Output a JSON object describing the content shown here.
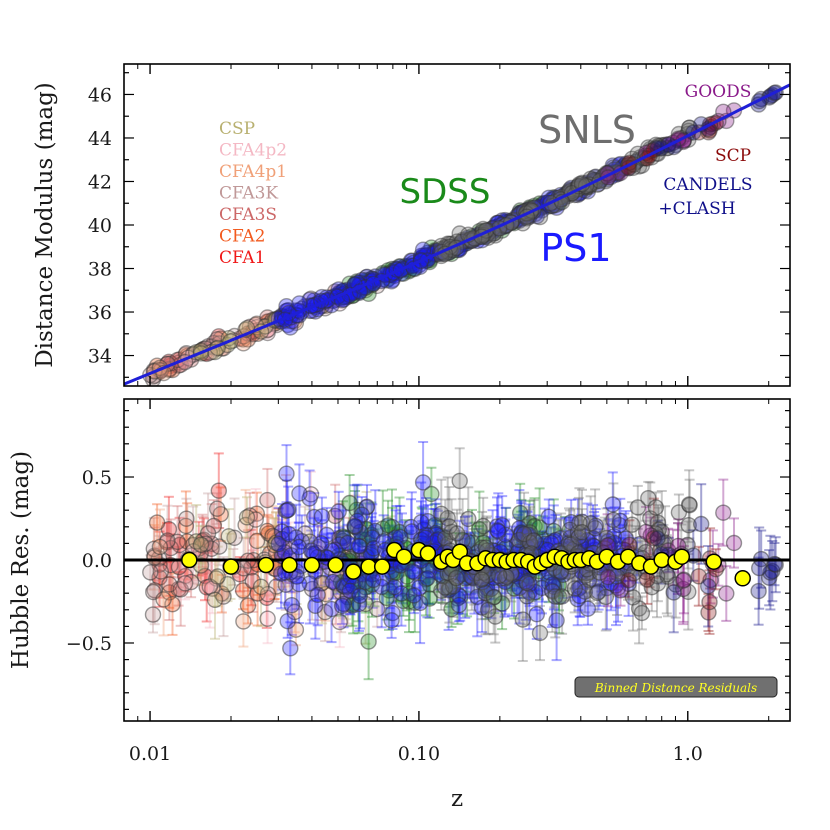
{
  "chart_data": [
    {
      "type": "scatter",
      "panel": "top",
      "ylabel": "Distance Modulus (mag)",
      "xscale": "log",
      "xlim": [
        0.008,
        2.4
      ],
      "ylim": [
        32.6,
        47.4
      ],
      "yticks": [
        34,
        36,
        38,
        40,
        42,
        44,
        46
      ],
      "model_line": {
        "color": "#1f1fd6",
        "H0_kms_mpc": 70,
        "Om": 0.3
      },
      "survey_labels_left": [
        {
          "text": "CSP",
          "color": "#b8b070"
        },
        {
          "text": "CFA4p2",
          "color": "#f4b8c4"
        },
        {
          "text": "CFA4p1",
          "color": "#f0a078"
        },
        {
          "text": "CFA3K",
          "color": "#c09898"
        },
        {
          "text": "CFA3S",
          "color": "#cc6868"
        },
        {
          "text": "CFA2",
          "color": "#f25a1e"
        },
        {
          "text": "CFA1",
          "color": "#f01818"
        }
      ],
      "survey_labels_right": [
        {
          "text": "SDSS",
          "color": "#1a8a1a"
        },
        {
          "text": "SNLS",
          "color": "#6e6e6e"
        },
        {
          "text": "PS1",
          "color": "#1a1aff"
        },
        {
          "text": "GOODS",
          "color": "#8a1a8a"
        },
        {
          "text": "SCP",
          "color": "#8b0a0a"
        },
        {
          "text": "CANDELS",
          "color": "#10108a"
        },
        {
          "text": "+CLASH",
          "color": "#10108a"
        }
      ],
      "series": [
        {
          "name": "CFA1",
          "color": "#f01818",
          "z_range": [
            0.01,
            0.03
          ],
          "count": 15
        },
        {
          "name": "CFA2",
          "color": "#f25a1e",
          "z_range": [
            0.01,
            0.04
          ],
          "count": 18
        },
        {
          "name": "CFA3S",
          "color": "#cc6868",
          "z_range": [
            0.01,
            0.07
          ],
          "count": 30
        },
        {
          "name": "CFA3K",
          "color": "#c09898",
          "z_range": [
            0.01,
            0.07
          ],
          "count": 35
        },
        {
          "name": "CFA4p1",
          "color": "#f0a078",
          "z_range": [
            0.01,
            0.06
          ],
          "count": 20
        },
        {
          "name": "CFA4p2",
          "color": "#f4b8c4",
          "z_range": [
            0.01,
            0.06
          ],
          "count": 14
        },
        {
          "name": "CSP",
          "color": "#b8b070",
          "z_range": [
            0.01,
            0.08
          ],
          "count": 22
        },
        {
          "name": "SDSS",
          "color": "#1a8a1a",
          "z_range": [
            0.05,
            0.35
          ],
          "count": 110
        },
        {
          "name": "PS1",
          "color": "#1a1aff",
          "z_range": [
            0.03,
            0.65
          ],
          "count": 280
        },
        {
          "name": "SNLS",
          "color": "#6e6e6e",
          "z_range": [
            0.12,
            1.05
          ],
          "count": 150
        },
        {
          "name": "GOODS",
          "color": "#8a1a8a",
          "z_range": [
            0.5,
            1.5
          ],
          "count": 18
        },
        {
          "name": "SCP",
          "color": "#8b0a0a",
          "z_range": [
            0.6,
            1.4
          ],
          "count": 10
        },
        {
          "name": "CANDELS+CLASH",
          "color": "#10108a",
          "z_range": [
            0.7,
            2.3
          ],
          "count": 15
        }
      ]
    },
    {
      "type": "scatter",
      "panel": "bottom",
      "ylabel": "Hubble Res. (mag)",
      "xlabel": "z",
      "xscale": "log",
      "xlim": [
        0.008,
        2.4
      ],
      "ylim": [
        -0.97,
        0.97
      ],
      "yticks": [
        -0.5,
        0.0,
        0.5
      ],
      "ytick_labels": [
        "−0.5",
        "0.0",
        "0.5"
      ],
      "xticks": [
        0.01,
        0.1,
        1.0
      ],
      "xtick_labels": [
        "0.01",
        "0.10",
        "1.0"
      ],
      "zero_line": 0,
      "legend": {
        "text": "Binned Distance Residuals",
        "placement": "bottom-right",
        "text_color": "#ffff22",
        "box_color": "#707070"
      },
      "binned_residuals": {
        "color": "#ffff00",
        "z": [
          0.014,
          0.02,
          0.027,
          0.033,
          0.04,
          0.049,
          0.057,
          0.065,
          0.073,
          0.081,
          0.088,
          0.1,
          0.108,
          0.121,
          0.128,
          0.134,
          0.142,
          0.151,
          0.165,
          0.177,
          0.188,
          0.2,
          0.212,
          0.225,
          0.24,
          0.255,
          0.27,
          0.285,
          0.3,
          0.32,
          0.34,
          0.36,
          0.38,
          0.4,
          0.43,
          0.46,
          0.5,
          0.55,
          0.6,
          0.66,
          0.73,
          0.8,
          0.9,
          0.95,
          1.25,
          1.6
        ],
        "residual": [
          0.0,
          -0.04,
          -0.03,
          -0.03,
          -0.03,
          -0.03,
          -0.07,
          -0.04,
          -0.04,
          0.06,
          0.02,
          0.06,
          0.04,
          -0.01,
          0.02,
          0.0,
          0.05,
          -0.02,
          -0.02,
          0.01,
          0.0,
          0.0,
          -0.01,
          0.0,
          0.0,
          -0.01,
          -0.04,
          -0.02,
          0.0,
          0.02,
          0.01,
          -0.01,
          0.0,
          0.0,
          0.01,
          -0.01,
          0.02,
          -0.01,
          0.02,
          -0.02,
          -0.04,
          0.0,
          -0.01,
          0.02,
          -0.01,
          -0.11
        ]
      }
    }
  ]
}
